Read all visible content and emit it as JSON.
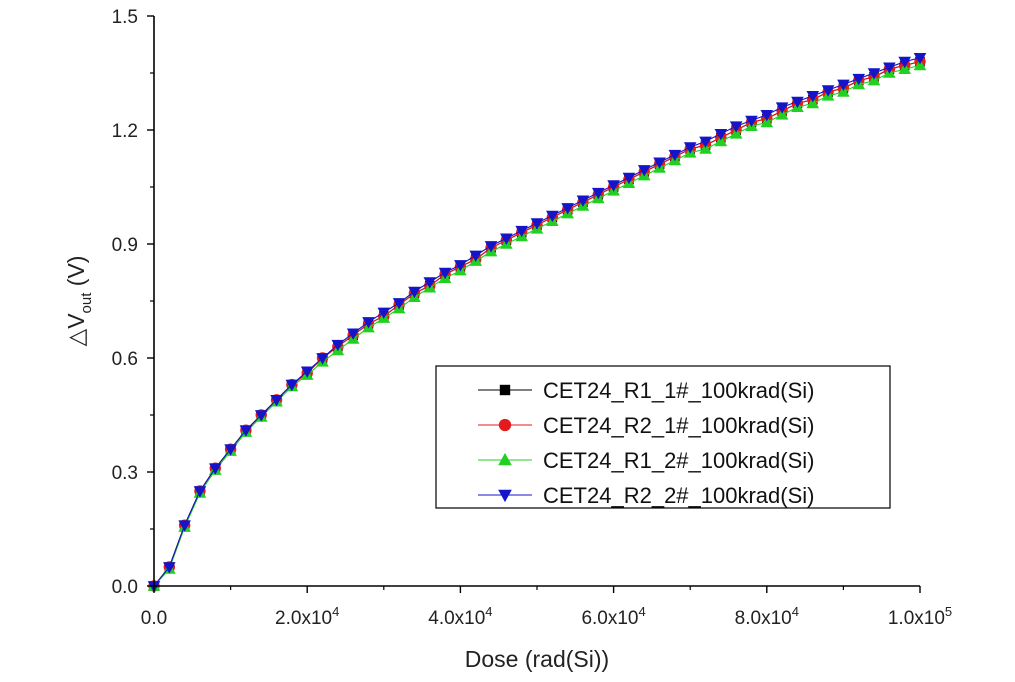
{
  "chart_data": {
    "type": "line",
    "title": "",
    "xlabel": "Dose (rad(Si))",
    "ylabel": {
      "prefix": "△V",
      "subscript": "out",
      "suffix": " (V)"
    },
    "xlim": [
      0,
      100000
    ],
    "ylim": [
      0,
      1.5
    ],
    "x_ticks": [
      {
        "value": 0,
        "mantissa": "0.0",
        "exponent": ""
      },
      {
        "value": 20000,
        "mantissa": "2.0x10",
        "exponent": "4"
      },
      {
        "value": 40000,
        "mantissa": "4.0x10",
        "exponent": "4"
      },
      {
        "value": 60000,
        "mantissa": "6.0x10",
        "exponent": "4"
      },
      {
        "value": 80000,
        "mantissa": "8.0x10",
        "exponent": "4"
      },
      {
        "value": 100000,
        "mantissa": "1.0x10",
        "exponent": "5"
      }
    ],
    "y_ticks": [
      {
        "value": 0.0,
        "label": "0.0"
      },
      {
        "value": 0.3,
        "label": "0.3"
      },
      {
        "value": 0.6,
        "label": "0.6"
      },
      {
        "value": 0.9,
        "label": "0.9"
      },
      {
        "value": 1.2,
        "label": "1.2"
      },
      {
        "value": 1.5,
        "label": "1.5"
      }
    ],
    "grid": false,
    "legend_position": "bottom-right",
    "x": [
      0,
      2000,
      4000,
      6000,
      8000,
      10000,
      12000,
      14000,
      16000,
      18000,
      20000,
      22000,
      24000,
      26000,
      28000,
      30000,
      32000,
      34000,
      36000,
      38000,
      40000,
      42000,
      44000,
      46000,
      48000,
      50000,
      52000,
      54000,
      56000,
      58000,
      60000,
      62000,
      64000,
      66000,
      68000,
      70000,
      72000,
      74000,
      76000,
      78000,
      80000,
      82000,
      84000,
      86000,
      88000,
      90000,
      92000,
      94000,
      96000,
      98000,
      100000
    ],
    "series": [
      {
        "name": "CET24_R1_1#_100krad(Si)",
        "color": "#000000",
        "marker": "square",
        "values": [
          0.0,
          0.05,
          0.16,
          0.25,
          0.31,
          0.36,
          0.41,
          0.45,
          0.49,
          0.53,
          0.56,
          0.6,
          0.63,
          0.66,
          0.69,
          0.71,
          0.74,
          0.77,
          0.79,
          0.82,
          0.84,
          0.86,
          0.89,
          0.91,
          0.93,
          0.95,
          0.97,
          0.99,
          1.01,
          1.03,
          1.05,
          1.07,
          1.09,
          1.11,
          1.13,
          1.15,
          1.16,
          1.18,
          1.2,
          1.22,
          1.23,
          1.25,
          1.27,
          1.28,
          1.3,
          1.31,
          1.33,
          1.34,
          1.36,
          1.37,
          1.38
        ]
      },
      {
        "name": "CET24_R2_1#_100krad(Si)",
        "color": "#e41a1c",
        "marker": "circle",
        "values": [
          0.0,
          0.05,
          0.16,
          0.25,
          0.31,
          0.36,
          0.41,
          0.45,
          0.49,
          0.53,
          0.56,
          0.6,
          0.63,
          0.66,
          0.69,
          0.71,
          0.74,
          0.77,
          0.79,
          0.82,
          0.84,
          0.86,
          0.89,
          0.91,
          0.93,
          0.95,
          0.97,
          0.99,
          1.01,
          1.03,
          1.05,
          1.07,
          1.09,
          1.11,
          1.13,
          1.15,
          1.16,
          1.18,
          1.2,
          1.22,
          1.23,
          1.25,
          1.27,
          1.28,
          1.3,
          1.31,
          1.33,
          1.34,
          1.36,
          1.37,
          1.38
        ]
      },
      {
        "name": "CET24_R1_2#_100krad(Si)",
        "color": "#22d022",
        "marker": "triangle-up",
        "values": [
          0.0,
          0.045,
          0.155,
          0.245,
          0.305,
          0.355,
          0.405,
          0.445,
          0.485,
          0.525,
          0.555,
          0.59,
          0.62,
          0.65,
          0.68,
          0.705,
          0.73,
          0.76,
          0.785,
          0.81,
          0.83,
          0.855,
          0.88,
          0.9,
          0.92,
          0.94,
          0.96,
          0.98,
          1.0,
          1.02,
          1.04,
          1.06,
          1.08,
          1.1,
          1.12,
          1.14,
          1.15,
          1.17,
          1.19,
          1.21,
          1.22,
          1.24,
          1.26,
          1.27,
          1.29,
          1.3,
          1.32,
          1.33,
          1.35,
          1.36,
          1.37
        ]
      },
      {
        "name": "CET24_R2_2#_100krad(Si)",
        "color": "#1414c8",
        "marker": "triangle-down",
        "values": [
          0.0,
          0.05,
          0.16,
          0.25,
          0.31,
          0.36,
          0.41,
          0.45,
          0.49,
          0.53,
          0.565,
          0.6,
          0.635,
          0.665,
          0.695,
          0.72,
          0.745,
          0.775,
          0.8,
          0.825,
          0.845,
          0.87,
          0.895,
          0.915,
          0.935,
          0.955,
          0.975,
          0.995,
          1.015,
          1.035,
          1.055,
          1.075,
          1.095,
          1.115,
          1.135,
          1.155,
          1.17,
          1.19,
          1.21,
          1.225,
          1.24,
          1.26,
          1.275,
          1.29,
          1.305,
          1.32,
          1.335,
          1.35,
          1.365,
          1.38,
          1.39
        ]
      }
    ]
  }
}
